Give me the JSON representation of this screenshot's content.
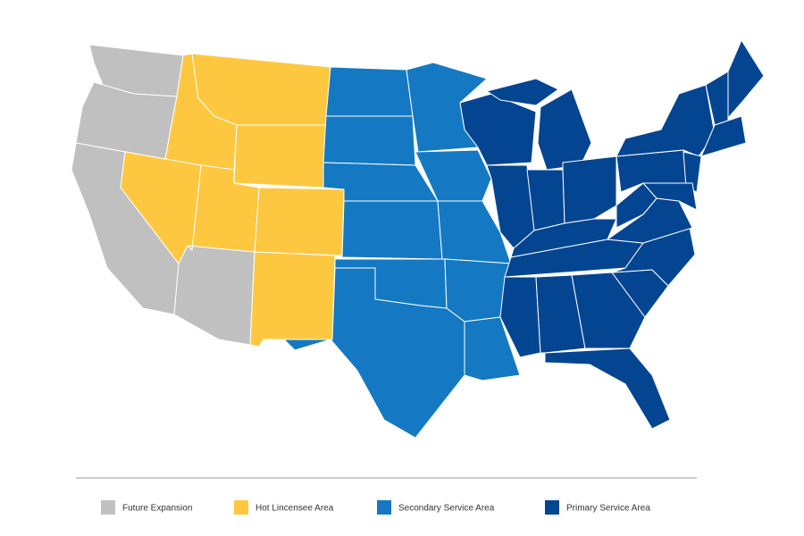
{
  "legend": [
    {
      "label": "Future Expansion",
      "color": "#c0c0c0"
    },
    {
      "label": "Hot Lincensee Area",
      "color": "#fdc840"
    },
    {
      "label": "Secondary Service Area",
      "color": "#1479c2"
    },
    {
      "label": "Primary Service Area",
      "color": "#044592"
    }
  ]
}
